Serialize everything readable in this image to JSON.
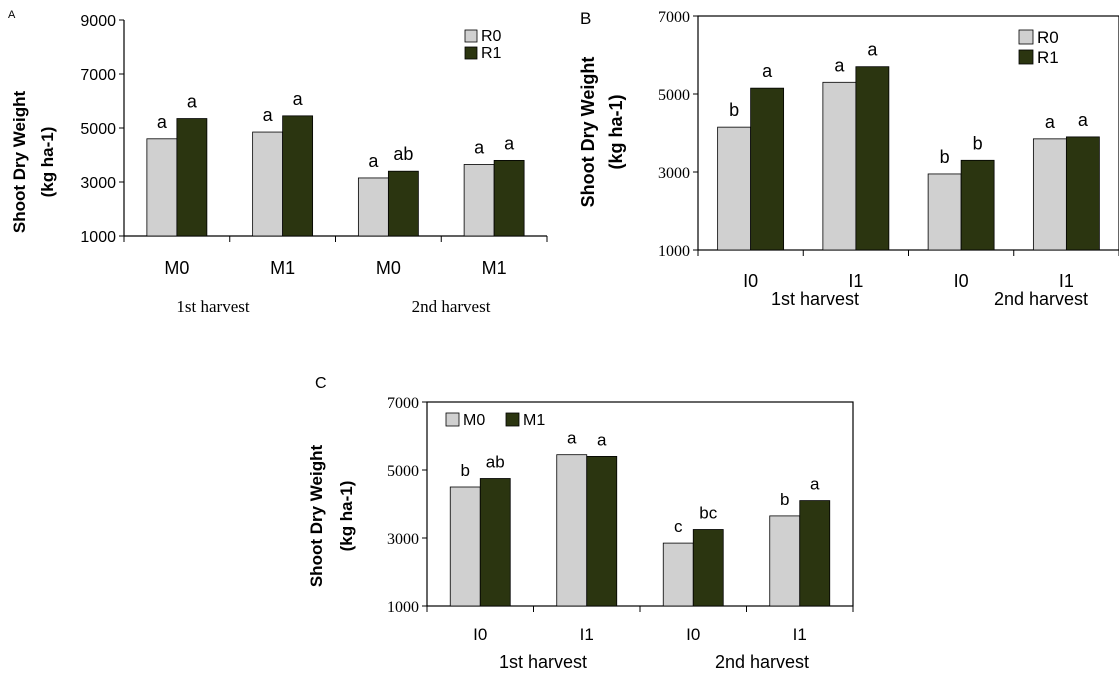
{
  "colors": {
    "R0": "#d0d0d0",
    "R1": "#2b3510",
    "M0": "#d0d0d0",
    "M1": "#2b3510",
    "axis": "#000000"
  },
  "chart_data": [
    {
      "type": "bar",
      "panel": "A",
      "categories": [
        "M0",
        "M1",
        "M0",
        "M1"
      ],
      "groups": [
        "1st harvest",
        "2nd harvest"
      ],
      "series": [
        {
          "name": "R0",
          "values": [
            4600,
            4850,
            3150,
            3650
          ],
          "letters": [
            "a",
            "a",
            "a",
            "a"
          ]
        },
        {
          "name": "R1",
          "values": [
            5350,
            5450,
            3400,
            3800
          ],
          "letters": [
            "a",
            "a",
            "ab",
            "a"
          ]
        }
      ],
      "ylabel": [
        "Shoot Dry Weight",
        "(kg ha-1)"
      ],
      "ylim": [
        1000,
        9000
      ],
      "yticks": [
        "1000",
        "3000",
        "5000",
        "7000",
        "9000"
      ],
      "ytick_values": [
        1000,
        3000,
        5000,
        7000,
        9000
      ],
      "legend": "top-right",
      "grid": false
    },
    {
      "type": "bar",
      "panel": "B",
      "categories": [
        "I0",
        "I1",
        "I0",
        "I1"
      ],
      "groups": [
        "1st harvest",
        "2nd harvest"
      ],
      "series": [
        {
          "name": "R0",
          "values": [
            4150,
            5300,
            2950,
            3850
          ],
          "letters": [
            "b",
            "a",
            "b",
            "a"
          ]
        },
        {
          "name": "R1",
          "values": [
            5150,
            5700,
            3300,
            3900
          ],
          "letters": [
            "a",
            "a",
            "b",
            "a"
          ]
        }
      ],
      "ylabel": [
        "Shoot Dry Weight",
        "(kg ha-1)"
      ],
      "ylim": [
        1000,
        7000
      ],
      "yticks": [
        "1000",
        "3000",
        "5000",
        "7000"
      ],
      "ytick_values": [
        1000,
        3000,
        5000,
        7000
      ],
      "legend": "top-right",
      "grid": false
    },
    {
      "type": "bar",
      "panel": "C",
      "categories": [
        "I0",
        "I1",
        "I0",
        "I1"
      ],
      "groups": [
        "1st harvest",
        "2nd harvest"
      ],
      "series": [
        {
          "name": "M0",
          "values": [
            4500,
            5450,
            2850,
            3650
          ],
          "letters": [
            "b",
            "a",
            "c",
            "b"
          ]
        },
        {
          "name": "M1",
          "values": [
            4750,
            5400,
            3250,
            4100
          ],
          "letters": [
            "ab",
            "a",
            "bc",
            "a"
          ]
        }
      ],
      "ylabel": [
        "Shoot Dry Weight",
        "(kg ha-1)"
      ],
      "ylim": [
        1000,
        7000
      ],
      "yticks": [
        "1000",
        "3000",
        "5000",
        "7000"
      ],
      "ytick_values": [
        1000,
        3000,
        5000,
        7000
      ],
      "legend": "top-left",
      "grid": false
    }
  ]
}
